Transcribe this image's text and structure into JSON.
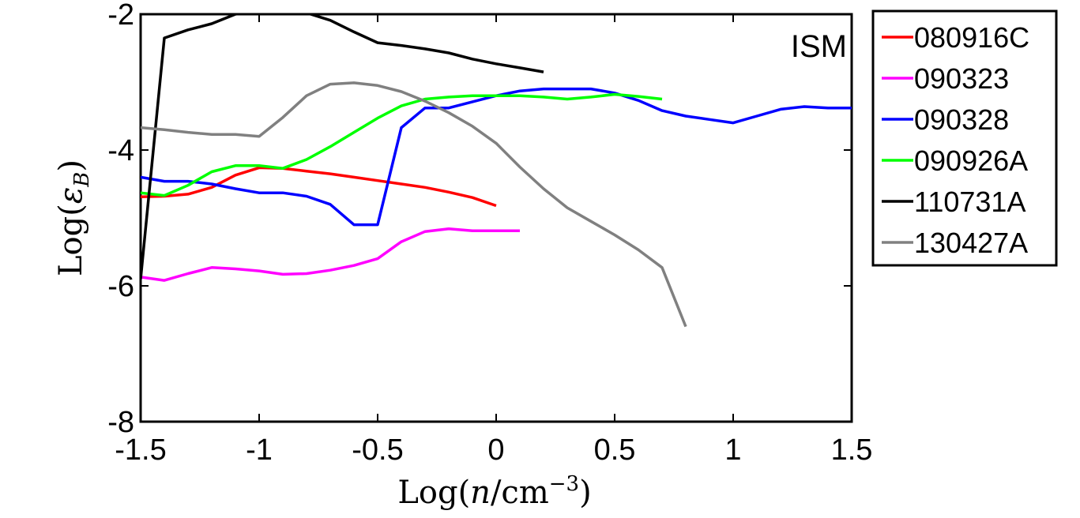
{
  "chart_data": {
    "type": "line",
    "title": "",
    "annotation": "ISM",
    "xlabel": "Log(n/cm⁻³)",
    "ylabel": "Log(ε_B)",
    "xlabel_parts": {
      "base": "Log(",
      "var": "n",
      "unit": "/cm",
      "sup": "−3",
      "close": ")"
    },
    "ylabel_parts": {
      "base": "Log(",
      "var": "ε",
      "sub": "B",
      "close": ")"
    },
    "xlim": [
      -1.5,
      1.5
    ],
    "ylim": [
      -8,
      -2
    ],
    "xticks": [
      -1.5,
      -1,
      -0.5,
      0,
      0.5,
      1,
      1.5
    ],
    "xtick_labels": [
      "-1.5",
      "-1",
      "-0.5",
      "0",
      "0.5",
      "1",
      "1.5"
    ],
    "yticks": [
      -8,
      -6,
      -4,
      -2
    ],
    "ytick_labels": [
      "-8",
      "-6",
      "-4",
      "-2"
    ],
    "grid": false,
    "legend_position": "outside-right",
    "series": [
      {
        "name": "080916C",
        "color": "#ff0000",
        "x": [
          -1.5,
          -1.4,
          -1.3,
          -1.2,
          -1.1,
          -1.0,
          -0.9,
          -0.8,
          -0.7,
          -0.6,
          -0.5,
          -0.4,
          -0.3,
          -0.2,
          -0.1,
          0.0
        ],
        "y": [
          -4.69,
          -4.68,
          -4.65,
          -4.55,
          -4.37,
          -4.26,
          -4.27,
          -4.31,
          -4.35,
          -4.4,
          -4.45,
          -4.5,
          -4.55,
          -4.62,
          -4.7,
          -4.82
        ]
      },
      {
        "name": "090323",
        "color": "#ff00ff",
        "x": [
          -1.5,
          -1.4,
          -1.3,
          -1.2,
          -1.1,
          -1.0,
          -0.9,
          -0.8,
          -0.7,
          -0.6,
          -0.5,
          -0.4,
          -0.3,
          -0.2,
          -0.1,
          0.0,
          0.1
        ],
        "y": [
          -5.87,
          -5.92,
          -5.82,
          -5.73,
          -5.75,
          -5.78,
          -5.83,
          -5.82,
          -5.77,
          -5.7,
          -5.6,
          -5.35,
          -5.2,
          -5.16,
          -5.19,
          -5.19,
          -5.19
        ]
      },
      {
        "name": "090328",
        "color": "#0000ff",
        "x": [
          -1.5,
          -1.4,
          -1.3,
          -1.2,
          -1.1,
          -1.0,
          -0.9,
          -0.8,
          -0.7,
          -0.6,
          -0.5,
          -0.4,
          -0.3,
          -0.2,
          -0.1,
          0.0,
          0.1,
          0.2,
          0.3,
          0.4,
          0.5,
          0.6,
          0.7,
          0.8,
          0.9,
          1.0,
          1.1,
          1.2,
          1.3,
          1.4,
          1.5
        ],
        "y": [
          -4.4,
          -4.46,
          -4.46,
          -4.5,
          -4.57,
          -4.63,
          -4.63,
          -4.68,
          -4.8,
          -5.1,
          -5.1,
          -3.67,
          -3.38,
          -3.38,
          -3.29,
          -3.2,
          -3.13,
          -3.1,
          -3.1,
          -3.1,
          -3.16,
          -3.27,
          -3.42,
          -3.5,
          -3.55,
          -3.6,
          -3.5,
          -3.4,
          -3.36,
          -3.38,
          -3.38
        ]
      },
      {
        "name": "090926A",
        "color": "#00ff00",
        "x": [
          -1.5,
          -1.4,
          -1.3,
          -1.2,
          -1.1,
          -1.0,
          -0.9,
          -0.8,
          -0.7,
          -0.6,
          -0.5,
          -0.4,
          -0.3,
          -0.2,
          -0.1,
          0.0,
          0.1,
          0.2,
          0.3,
          0.4,
          0.5,
          0.6,
          0.7
        ],
        "y": [
          -4.63,
          -4.67,
          -4.52,
          -4.32,
          -4.23,
          -4.23,
          -4.27,
          -4.14,
          -3.95,
          -3.74,
          -3.53,
          -3.35,
          -3.25,
          -3.22,
          -3.2,
          -3.2,
          -3.2,
          -3.22,
          -3.25,
          -3.22,
          -3.18,
          -3.21,
          -3.25
        ]
      },
      {
        "name": "110731A",
        "color": "#000000",
        "x": [
          -1.5,
          -1.4,
          -1.3,
          -1.2,
          -1.1,
          -1.0,
          -0.9,
          -0.8,
          -0.7,
          -0.6,
          -0.5,
          -0.4,
          -0.3,
          -0.2,
          -0.1,
          0.0,
          0.1,
          0.2
        ],
        "y": [
          -5.9,
          -2.35,
          -2.23,
          -2.14,
          -2.0,
          -1.94,
          -1.95,
          -1.98,
          -2.09,
          -2.26,
          -2.42,
          -2.46,
          -2.51,
          -2.57,
          -2.66,
          -2.73,
          -2.79,
          -2.85
        ]
      },
      {
        "name": "130427A",
        "color": "#808080",
        "x": [
          -1.5,
          -1.4,
          -1.3,
          -1.2,
          -1.1,
          -1.0,
          -0.9,
          -0.8,
          -0.7,
          -0.6,
          -0.5,
          -0.4,
          -0.3,
          -0.2,
          -0.1,
          0.0,
          0.1,
          0.2,
          0.3,
          0.4,
          0.5,
          0.6,
          0.7,
          0.8
        ],
        "y": [
          -3.67,
          -3.7,
          -3.74,
          -3.77,
          -3.77,
          -3.8,
          -3.52,
          -3.2,
          -3.03,
          -3.01,
          -3.05,
          -3.14,
          -3.28,
          -3.45,
          -3.65,
          -3.9,
          -4.25,
          -4.57,
          -4.85,
          -5.05,
          -5.25,
          -5.47,
          -5.73,
          -6.6
        ]
      }
    ]
  }
}
